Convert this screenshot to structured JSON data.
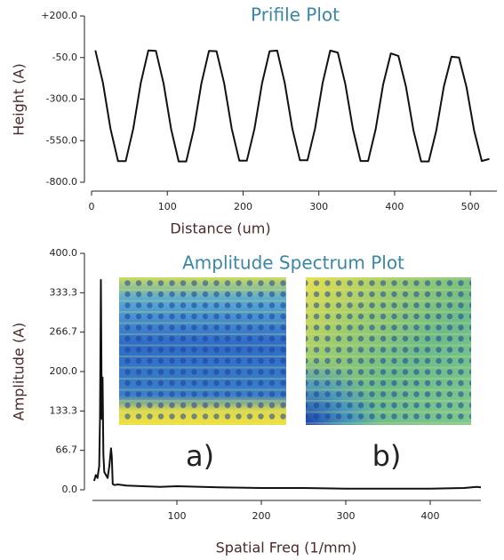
{
  "chart_data": [
    {
      "type": "line",
      "title": "Prifile Plot",
      "x_label": "Distance (um)",
      "y_label": "Height (A)",
      "xlim": [
        0,
        535
      ],
      "xticks": [
        0,
        100,
        200,
        300,
        400,
        500
      ],
      "ylim": [
        -800,
        200
      ],
      "yticks": [
        {
          "value": 200,
          "label": "+200.0"
        },
        {
          "value": -50,
          "label": "-50.0"
        },
        {
          "value": -300,
          "label": "-300.0"
        },
        {
          "value": -550,
          "label": "-550.0"
        },
        {
          "value": -800,
          "label": "-800.0"
        }
      ],
      "series": [
        {
          "color": "#111111",
          "x": [
            5,
            15,
            25,
            35,
            45,
            55,
            65,
            75,
            85,
            95,
            105,
            115,
            125,
            135,
            145,
            155,
            165,
            175,
            185,
            195,
            205,
            215,
            225,
            235,
            245,
            255,
            265,
            275,
            285,
            295,
            305,
            315,
            325,
            335,
            345,
            355,
            365,
            375,
            385,
            395,
            405,
            415,
            425,
            435,
            445,
            455,
            465,
            475,
            485,
            495,
            505,
            515,
            525
          ],
          "values": [
            -7,
            -202,
            -478,
            -673,
            -673,
            -478,
            -202,
            -7,
            -10,
            -205,
            -480,
            -675,
            -675,
            -480,
            -205,
            -10,
            -12,
            -205,
            -478,
            -670,
            -670,
            -478,
            -205,
            -12,
            -8,
            -202,
            -478,
            -668,
            -668,
            -478,
            -202,
            -8,
            -20,
            -210,
            -482,
            -672,
            -672,
            -482,
            -210,
            -25,
            -40,
            -225,
            -490,
            -675,
            -675,
            -490,
            -225,
            -45,
            -50,
            -230,
            -490,
            -672,
            -660
          ]
        }
      ]
    },
    {
      "type": "line",
      "title": "Amplitude Spectrum Plot",
      "x_label": "Spatial Freq (1/mm)",
      "y_label": "Amplitude (A)",
      "xlim": [
        0,
        460
      ],
      "xticks": [
        100,
        200,
        300,
        400
      ],
      "ylim": [
        0,
        400
      ],
      "yticks": [
        {
          "value": 0,
          "label": "0.0"
        },
        66.7,
        133.3,
        {
          "value": 200,
          "label": "200.0"
        },
        266.7,
        333.3,
        {
          "value": 400,
          "label": "400.0"
        }
      ],
      "annotations": [
        "a)",
        "b)"
      ],
      "series": [
        {
          "color": "#111111",
          "x": [
            2,
            4,
            6,
            8,
            9,
            10,
            11,
            12,
            13,
            14,
            16,
            18,
            20,
            22,
            23,
            24,
            26,
            30,
            40,
            60,
            80,
            100,
            150,
            200,
            250,
            300,
            350,
            400,
            440,
            455,
            460
          ],
          "values": [
            15,
            25,
            20,
            40,
            120,
            355,
            120,
            190,
            60,
            30,
            25,
            20,
            40,
            70,
            55,
            10,
            8,
            9,
            7,
            6,
            5,
            6,
            4,
            3,
            3,
            2,
            2,
            2,
            3,
            5,
            4
          ]
        }
      ]
    }
  ]
}
